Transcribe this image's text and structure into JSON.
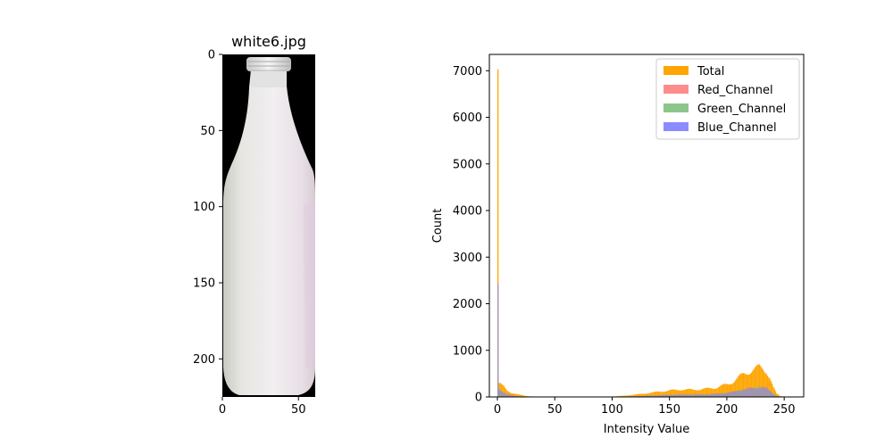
{
  "chart_data": [
    {
      "type": "image",
      "title": "white6.jpg",
      "xticks": [
        0,
        50
      ],
      "yticks": [
        0,
        50,
        100,
        150,
        200
      ],
      "xlim": [
        0,
        61
      ],
      "ylim": [
        225,
        0
      ]
    },
    {
      "type": "histogram",
      "title": "",
      "xlabel": "Intensity Value",
      "ylabel": "Count",
      "xlim": [
        -7,
        267
      ],
      "ylim": [
        0,
        7350
      ],
      "xticks": [
        0,
        50,
        100,
        150,
        200,
        250
      ],
      "yticks": [
        0,
        1000,
        2000,
        3000,
        4000,
        5000,
        6000,
        7000
      ],
      "legend_position": "upper-right",
      "series": [
        {
          "name": "Total",
          "color": "#ffa500",
          "points": [
            [
              0,
              7030
            ],
            [
              1,
              300
            ],
            [
              3,
              250
            ],
            [
              5,
              220
            ],
            [
              8,
              140
            ],
            [
              12,
              90
            ],
            [
              16,
              60
            ],
            [
              20,
              40
            ],
            [
              25,
              20
            ],
            [
              30,
              10
            ],
            [
              40,
              5
            ],
            [
              60,
              3
            ],
            [
              80,
              5
            ],
            [
              100,
              10
            ],
            [
              110,
              25
            ],
            [
              120,
              50
            ],
            [
              130,
              80
            ],
            [
              140,
              110
            ],
            [
              150,
              140
            ],
            [
              160,
              160
            ],
            [
              170,
              155
            ],
            [
              180,
              170
            ],
            [
              190,
              200
            ],
            [
              200,
              270
            ],
            [
              205,
              330
            ],
            [
              210,
              420
            ],
            [
              215,
              500
            ],
            [
              220,
              560
            ],
            [
              225,
              600
            ],
            [
              228,
              640
            ],
            [
              231,
              620
            ],
            [
              234,
              560
            ],
            [
              237,
              400
            ],
            [
              240,
              200
            ],
            [
              243,
              70
            ],
            [
              246,
              20
            ],
            [
              250,
              5
            ],
            [
              253,
              2
            ],
            [
              255,
              1
            ]
          ]
        },
        {
          "name": "Red_Channel",
          "color": "#ff8080",
          "points": [
            [
              0,
              2450
            ],
            [
              1,
              180
            ],
            [
              3,
              130
            ],
            [
              5,
              100
            ],
            [
              8,
              60
            ],
            [
              12,
              35
            ],
            [
              16,
              20
            ],
            [
              20,
              12
            ],
            [
              25,
              6
            ],
            [
              30,
              3
            ],
            [
              40,
              2
            ],
            [
              60,
              1
            ],
            [
              80,
              2
            ],
            [
              100,
              3
            ],
            [
              110,
              8
            ],
            [
              120,
              15
            ],
            [
              130,
              25
            ],
            [
              140,
              35
            ],
            [
              150,
              45
            ],
            [
              160,
              50
            ],
            [
              170,
              50
            ],
            [
              180,
              55
            ],
            [
              190,
              65
            ],
            [
              200,
              90
            ],
            [
              205,
              110
            ],
            [
              210,
              140
            ],
            [
              215,
              165
            ],
            [
              220,
              185
            ],
            [
              225,
              200
            ],
            [
              228,
              210
            ],
            [
              231,
              205
            ],
            [
              234,
              185
            ],
            [
              237,
              130
            ],
            [
              240,
              65
            ],
            [
              243,
              22
            ],
            [
              246,
              7
            ],
            [
              250,
              2
            ],
            [
              255,
              0
            ]
          ]
        },
        {
          "name": "Green_Channel",
          "color": "#80c080",
          "points": [
            [
              0,
              2400
            ],
            [
              1,
              170
            ],
            [
              3,
              125
            ],
            [
              5,
              95
            ],
            [
              8,
              55
            ],
            [
              12,
              32
            ],
            [
              16,
              18
            ],
            [
              20,
              11
            ],
            [
              25,
              5
            ],
            [
              30,
              3
            ],
            [
              40,
              2
            ],
            [
              60,
              1
            ],
            [
              80,
              2
            ],
            [
              100,
              3
            ],
            [
              110,
              8
            ],
            [
              120,
              15
            ],
            [
              130,
              25
            ],
            [
              140,
              35
            ],
            [
              150,
              45
            ],
            [
              160,
              52
            ],
            [
              170,
              50
            ],
            [
              180,
              55
            ],
            [
              190,
              65
            ],
            [
              200,
              90
            ],
            [
              205,
              110
            ],
            [
              210,
              140
            ],
            [
              215,
              165
            ],
            [
              220,
              185
            ],
            [
              225,
              200
            ],
            [
              228,
              212
            ],
            [
              231,
              205
            ],
            [
              234,
              185
            ],
            [
              237,
              135
            ],
            [
              240,
              68
            ],
            [
              243,
              24
            ],
            [
              246,
              7
            ],
            [
              250,
              2
            ],
            [
              255,
              0
            ]
          ]
        },
        {
          "name": "Blue_Channel",
          "color": "#8080ff",
          "points": [
            [
              0,
              2420
            ],
            [
              1,
              175
            ],
            [
              3,
              128
            ],
            [
              5,
              96
            ],
            [
              8,
              58
            ],
            [
              12,
              33
            ],
            [
              16,
              19
            ],
            [
              20,
              11
            ],
            [
              25,
              6
            ],
            [
              30,
              3
            ],
            [
              40,
              2
            ],
            [
              60,
              1
            ],
            [
              80,
              2
            ],
            [
              100,
              3
            ],
            [
              110,
              8
            ],
            [
              120,
              15
            ],
            [
              130,
              24
            ],
            [
              140,
              34
            ],
            [
              150,
              44
            ],
            [
              160,
              50
            ],
            [
              170,
              50
            ],
            [
              180,
              54
            ],
            [
              190,
              64
            ],
            [
              200,
              88
            ],
            [
              205,
              108
            ],
            [
              210,
              138
            ],
            [
              215,
              162
            ],
            [
              220,
              183
            ],
            [
              225,
              198
            ],
            [
              228,
              208
            ],
            [
              231,
              204
            ],
            [
              234,
              184
            ],
            [
              237,
              132
            ],
            [
              240,
              66
            ],
            [
              243,
              23
            ],
            [
              246,
              7
            ],
            [
              250,
              2
            ],
            [
              255,
              0
            ]
          ]
        }
      ]
    }
  ]
}
